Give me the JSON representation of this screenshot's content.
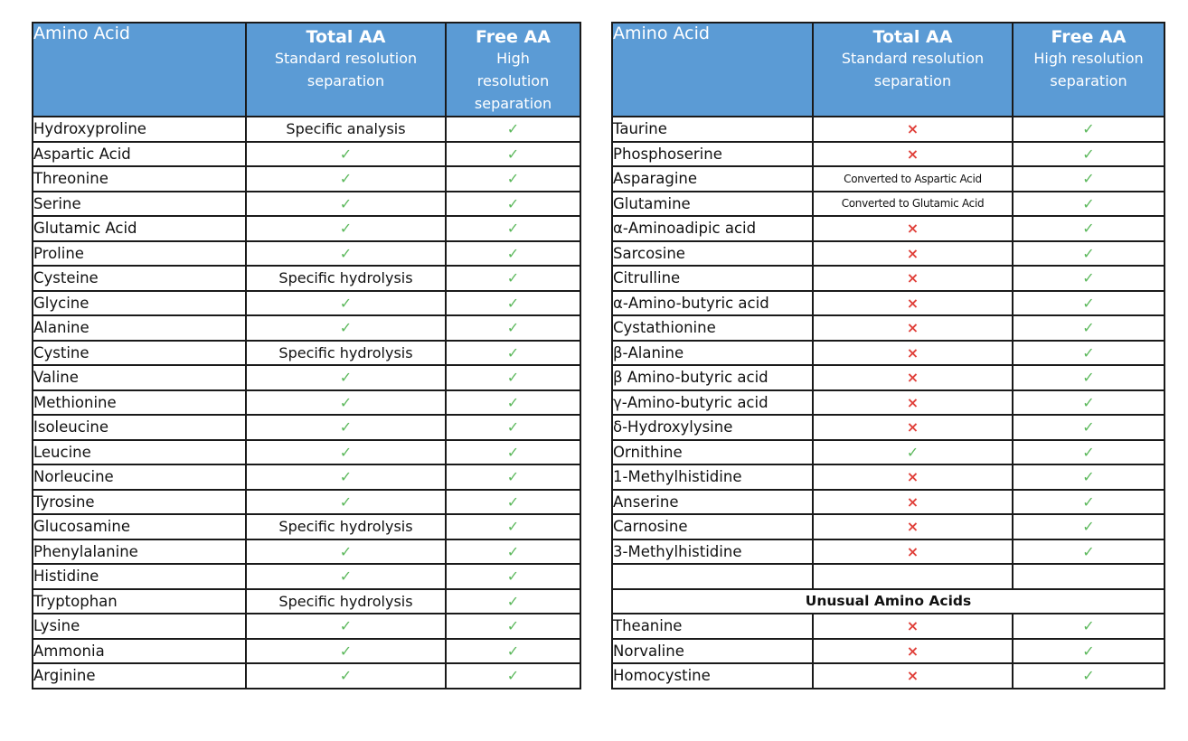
{
  "left_table": {
    "headers": {
      "name": "Amino Acid",
      "total_title": "Total AA",
      "total_sub": "Standard resolution separation",
      "free_title": "Free AA",
      "free_sub": "High resolution separation"
    },
    "rows": [
      {
        "name": "Hydroxyproline",
        "total": "Specific analysis",
        "free": "✓"
      },
      {
        "name": "Aspartic Acid",
        "total": "✓",
        "free": "✓"
      },
      {
        "name": "Threonine",
        "total": "✓",
        "free": "✓"
      },
      {
        "name": "Serine",
        "total": "✓",
        "free": "✓"
      },
      {
        "name": "Glutamic Acid",
        "total": "✓",
        "free": "✓"
      },
      {
        "name": "Proline",
        "total": "✓",
        "free": "✓"
      },
      {
        "name": "Cysteine",
        "total": "Specific hydrolysis",
        "free": "✓"
      },
      {
        "name": "Glycine",
        "total": "✓",
        "free": "✓"
      },
      {
        "name": "Alanine",
        "total": "✓",
        "free": "✓"
      },
      {
        "name": "Cystine",
        "total": "Specific hydrolysis",
        "free": "✓"
      },
      {
        "name": "Valine",
        "total": "✓",
        "free": "✓"
      },
      {
        "name": "Methionine",
        "total": "✓",
        "free": "✓"
      },
      {
        "name": "Isoleucine",
        "total": "✓",
        "free": "✓"
      },
      {
        "name": "Leucine",
        "total": "✓",
        "free": "✓"
      },
      {
        "name": "Norleucine",
        "total": "✓",
        "free": "✓"
      },
      {
        "name": "Tyrosine",
        "total": "✓",
        "free": "✓"
      },
      {
        "name": "Glucosamine",
        "total": "Specific hydrolysis",
        "free": "✓"
      },
      {
        "name": "Phenylalanine",
        "total": "✓",
        "free": "✓"
      },
      {
        "name": "Histidine",
        "total": "✓",
        "free": "✓"
      },
      {
        "name": "Tryptophan",
        "total": "Specific hydrolysis",
        "free": "✓"
      },
      {
        "name": "Lysine",
        "total": "✓",
        "free": "✓"
      },
      {
        "name": "Ammonia",
        "total": "✓",
        "free": "✓"
      },
      {
        "name": "Arginine",
        "total": "✓",
        "free": "✓"
      }
    ]
  },
  "right_table": {
    "headers": {
      "name": "Amino Acid",
      "total_title": "Total AA",
      "total_sub": "Standard resolution separation",
      "free_title": "Free AA",
      "free_sub": "High resolution separation"
    },
    "rows": [
      {
        "name": "Taurine",
        "total": "×",
        "free": "✓"
      },
      {
        "name": "Phosphoserine",
        "total": "×",
        "free": "✓"
      },
      {
        "name": "Asparagine",
        "total": "Converted to Aspartic Acid",
        "free": "✓"
      },
      {
        "name": "Glutamine",
        "total": "Converted to Glutamic Acid",
        "free": "✓"
      },
      {
        "name": "α-Aminoadipic acid",
        "total": "×",
        "free": "✓"
      },
      {
        "name": "Sarcosine",
        "total": "×",
        "free": "✓"
      },
      {
        "name": "Citrulline",
        "total": "×",
        "free": "✓"
      },
      {
        "name": "α-Amino-butyric acid",
        "total": "×",
        "free": "✓"
      },
      {
        "name": "Cystathionine",
        "total": "×",
        "free": "✓"
      },
      {
        "name": "β-Alanine",
        "total": "×",
        "free": "✓"
      },
      {
        "name": "β Amino-butyric acid",
        "total": "×",
        "free": "✓"
      },
      {
        "name": "γ-Amino-butyric acid",
        "total": "×",
        "free": "✓"
      },
      {
        "name": "δ-Hydroxylysine",
        "total": "×",
        "free": "✓"
      },
      {
        "name": "Ornithine",
        "total": "✓",
        "free": "✓"
      },
      {
        "name": "1-Methylhistidine",
        "total": "×",
        "free": "✓"
      },
      {
        "name": "Anserine",
        "total": "×",
        "free": "✓"
      },
      {
        "name": "Carnosine",
        "total": "×",
        "free": "✓"
      },
      {
        "name": "3-Methylhistidine",
        "total": "×",
        "free": "✓"
      }
    ],
    "section_title": "Unusual Amino Acids",
    "unusual_rows": [
      {
        "name": "Theanine",
        "total": "×",
        "free": "✓"
      },
      {
        "name": "Norvaline",
        "total": "×",
        "free": "✓"
      },
      {
        "name": "Homocystine",
        "total": "×",
        "free": "✓"
      }
    ]
  },
  "colors": {
    "header_bg": "#5b9bd5",
    "check": "#5cb85c",
    "cross": "#e0403a"
  }
}
